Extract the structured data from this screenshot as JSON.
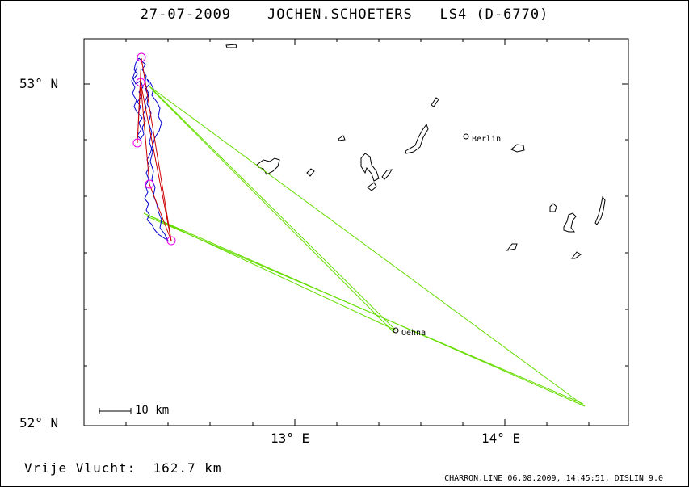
{
  "header": {
    "date": "27-07-2009",
    "pilot": "JOCHEN.SCHOETERS",
    "glider": "LS4 (D-6770)"
  },
  "axes": {
    "lat_labels": [
      "53° N",
      "52° N"
    ],
    "lon_labels": [
      "13° E",
      "14° E"
    ]
  },
  "places": {
    "berlin": "Berlin",
    "oehna": "Oehna"
  },
  "scale_bar": {
    "label": "10 km"
  },
  "footer": {
    "distance": "Vrije Vlucht:  162.7 km",
    "program": "CHARRON.LINE 06.08.2009, 14:45:51, DISLIN 9.0"
  },
  "colors": {
    "track": "#0000cc",
    "task_legs": "#66dd00",
    "optimized_route": "#cc0000",
    "turnpoints": "#ee00ee",
    "water": "#000000"
  }
}
